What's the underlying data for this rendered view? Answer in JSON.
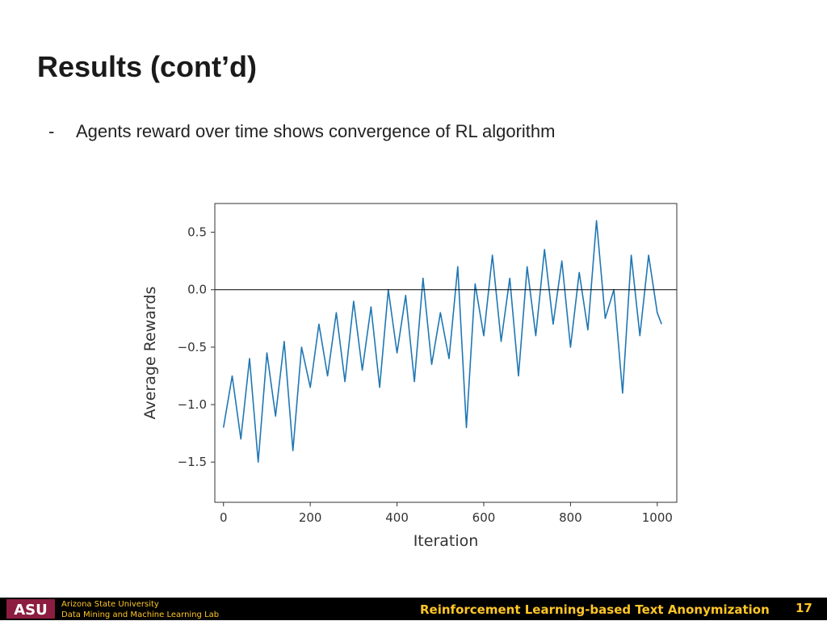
{
  "slide": {
    "title": "Results (cont’d)",
    "bullet_marker": "-",
    "bullet_text": "Agents reward over time shows convergence of RL algorithm"
  },
  "footer": {
    "logo_text": "ASU",
    "university": "Arizona State University",
    "lab": "Data Mining and Machine Learning Lab",
    "talk_title": "Reinforcement Learning-based Text Anonymization",
    "page_number": "17",
    "background_color": "#000000",
    "accent_color": "#ffc627",
    "logo_color": "#8c1d40"
  },
  "chart_data": {
    "type": "line",
    "title": "",
    "xlabel": "Iteration",
    "ylabel": "Average Rewards",
    "xlim": [
      -20,
      1045
    ],
    "ylim": [
      -1.85,
      0.75
    ],
    "xticks": [
      0,
      200,
      400,
      600,
      800,
      1000
    ],
    "xtick_labels": [
      "0",
      "200",
      "400",
      "600",
      "800",
      "1000"
    ],
    "yticks": [
      0.5,
      0.0,
      -0.5,
      -1.0,
      -1.5
    ],
    "ytick_labels": [
      "0.5",
      "0.0",
      "−0.5",
      "−1.0",
      "−1.5"
    ],
    "grid": false,
    "reference_line_y": 0.0,
    "line_color": "#1f77b4",
    "x": [
      0,
      20,
      40,
      60,
      80,
      100,
      120,
      140,
      160,
      180,
      200,
      220,
      240,
      260,
      280,
      300,
      320,
      340,
      360,
      380,
      400,
      420,
      440,
      460,
      480,
      500,
      520,
      540,
      560,
      580,
      600,
      620,
      640,
      660,
      680,
      700,
      720,
      740,
      760,
      780,
      800,
      820,
      840,
      860,
      880,
      900,
      920,
      940,
      960,
      980,
      1000,
      1010
    ],
    "series": [
      {
        "values": [
          -1.2,
          -0.75,
          -1.3,
          -0.6,
          -1.5,
          -0.55,
          -1.1,
          -0.45,
          -1.4,
          -0.5,
          -0.85,
          -0.3,
          -0.75,
          -0.2,
          -0.8,
          -0.1,
          -0.7,
          -0.15,
          -0.85,
          0.0,
          -0.55,
          -0.05,
          -0.8,
          0.1,
          -0.65,
          -0.2,
          -0.6,
          0.2,
          -1.2,
          0.05,
          -0.4,
          0.3,
          -0.45,
          0.1,
          -0.75,
          0.2,
          -0.4,
          0.35,
          -0.3,
          0.25,
          -0.5,
          0.15,
          -0.35,
          0.6,
          -0.25,
          0.0,
          -0.9,
          0.3,
          -0.4,
          0.3,
          -0.2,
          -0.3
        ]
      }
    ]
  }
}
